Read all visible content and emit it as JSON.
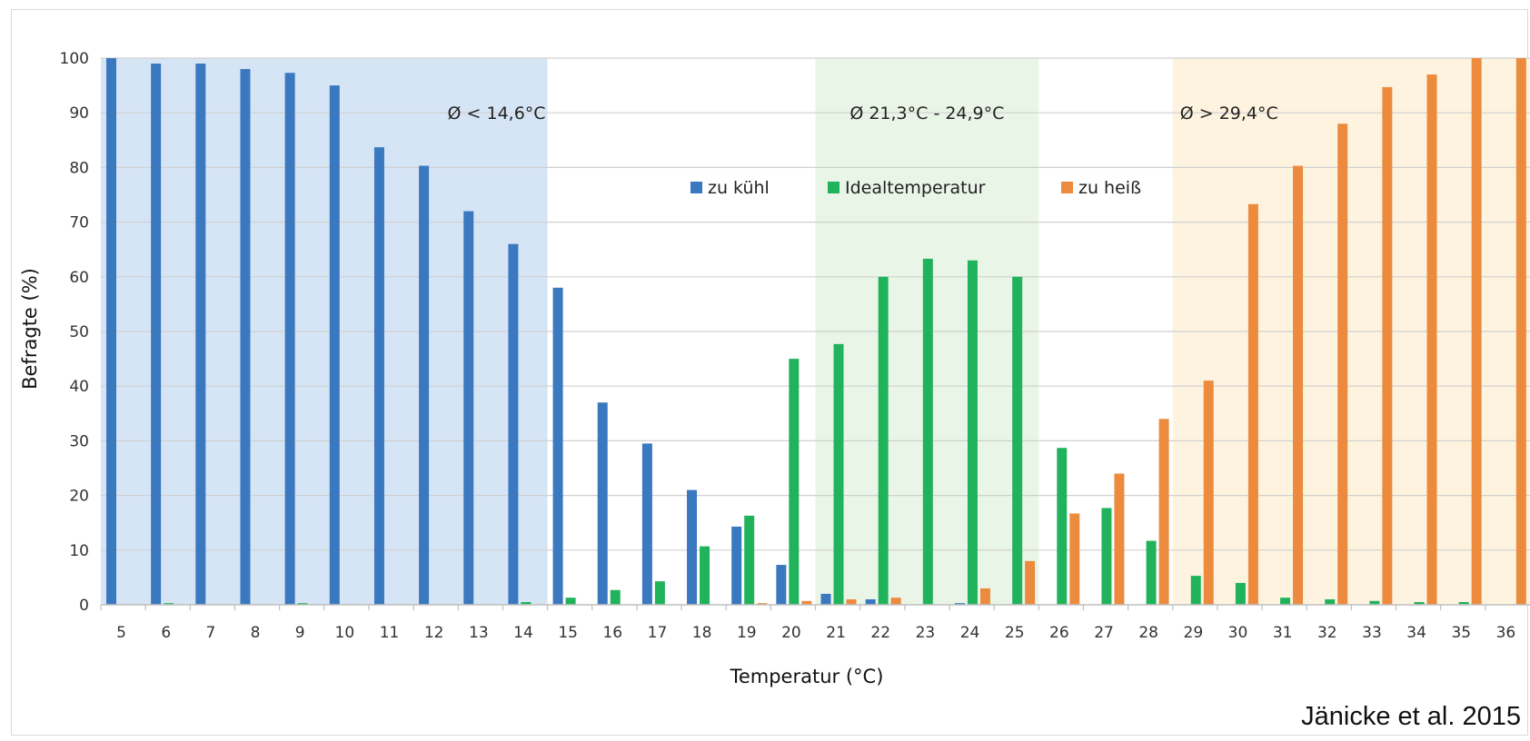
{
  "chart_data": {
    "type": "bar",
    "xlabel": "Temperatur (°C)",
    "ylabel": "Befragte (%)",
    "ylim": [
      0,
      100
    ],
    "yticks": [
      0,
      10,
      20,
      30,
      40,
      50,
      60,
      70,
      80,
      90,
      100
    ],
    "grid": true,
    "legend_position": "top-center",
    "categories": [
      "5",
      "6",
      "7",
      "8",
      "9",
      "10",
      "11",
      "12",
      "13",
      "14",
      "15",
      "16",
      "17",
      "18",
      "19",
      "20",
      "21",
      "22",
      "23",
      "24",
      "25",
      "26",
      "27",
      "28",
      "29",
      "30",
      "31",
      "32",
      "33",
      "34",
      "35",
      "36"
    ],
    "series": [
      {
        "name": "zu kühl",
        "color": "#3a78c0",
        "values": [
          100,
          99,
          99,
          98,
          97.3,
          95,
          83.7,
          80.3,
          72,
          66,
          58,
          37,
          29.5,
          21,
          14.3,
          7.3,
          2,
          1,
          0,
          0.3,
          0,
          0,
          0,
          0,
          0,
          0,
          0,
          0,
          0,
          0,
          0,
          0
        ]
      },
      {
        "name": "Idealtemperatur",
        "color": "#21b35c",
        "values": [
          0,
          0.3,
          0,
          0,
          0.3,
          0,
          0,
          0,
          0,
          0.5,
          1.3,
          2.7,
          4.3,
          10.7,
          16.3,
          45,
          47.7,
          60,
          63.3,
          63,
          60,
          28.7,
          17.7,
          11.7,
          5.3,
          4,
          1.3,
          1,
          0.7,
          0.5,
          0.5,
          0
        ]
      },
      {
        "name": "zu heiß",
        "color": "#ec8b3d",
        "values": [
          0,
          0,
          0,
          0,
          0,
          0,
          0,
          0,
          0,
          0,
          0,
          0,
          0,
          0,
          0.3,
          0.7,
          1,
          1.3,
          0,
          3,
          8,
          16.7,
          24,
          34,
          41,
          73.3,
          80.3,
          88,
          94.7,
          97,
          100,
          100
        ]
      }
    ],
    "zones": [
      {
        "label": "Ø < 14,6°C",
        "from": "5",
        "to": "14",
        "color": "#d6e5f5"
      },
      {
        "label": "Ø 21,3°C -  24,9°C",
        "from": "21",
        "to": "25",
        "color": "#e9f5e6"
      },
      {
        "label": "Ø > 29,4°C",
        "from": "29",
        "to": "36",
        "color": "#fdf3df"
      }
    ]
  },
  "credit": "Jänicke et al. 2015"
}
